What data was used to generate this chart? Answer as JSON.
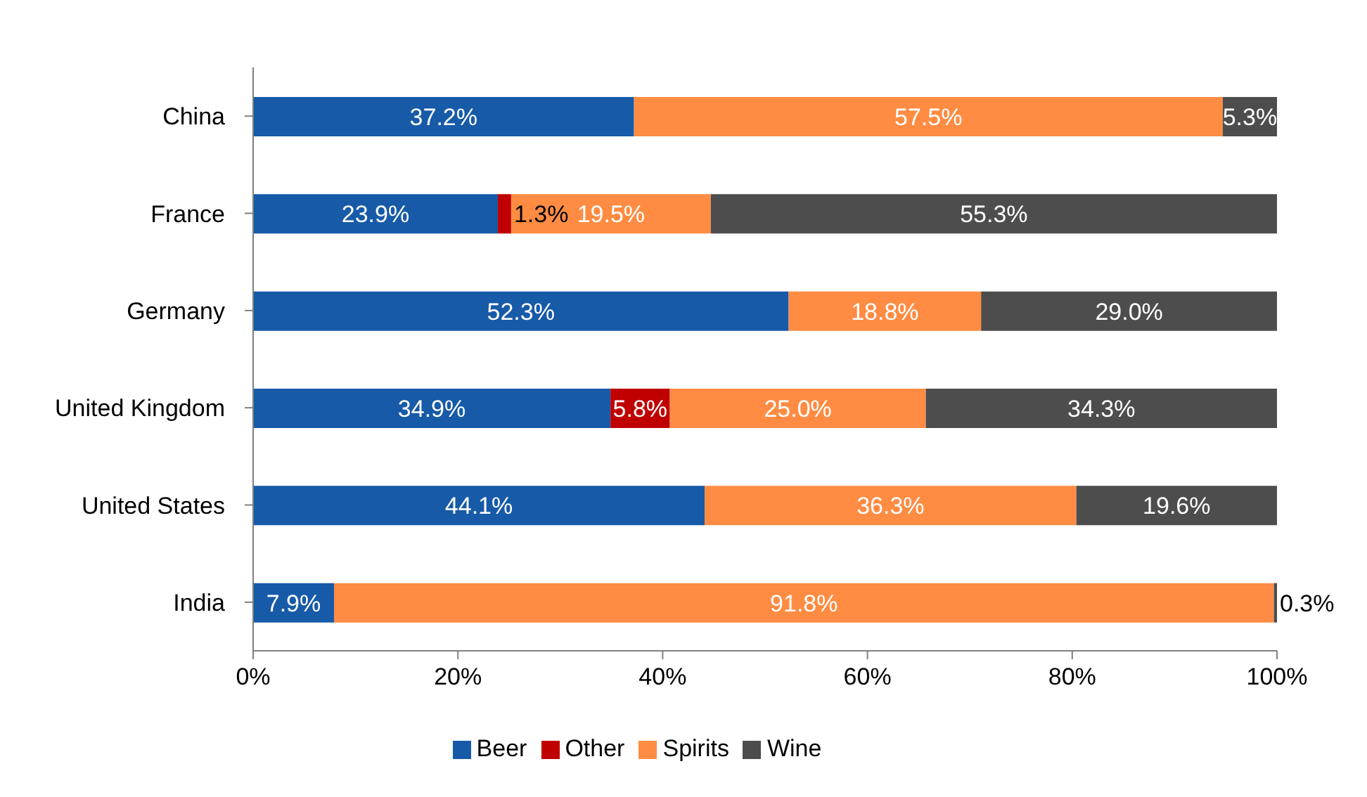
{
  "chart_data": {
    "type": "bar",
    "orientation": "horizontal",
    "stacked": true,
    "categories": [
      "China",
      "France",
      "Germany",
      "United Kingdom",
      "United States",
      "India"
    ],
    "series": [
      {
        "name": "Beer",
        "color": "#175aa8",
        "values": [
          37.2,
          23.9,
          52.3,
          34.9,
          44.1,
          7.9
        ],
        "value_labels": [
          "37.2%",
          "23.9%",
          "52.3%",
          "34.9%",
          "44.1%",
          "7.9%"
        ]
      },
      {
        "name": "Other",
        "color": "#c00000",
        "values": [
          null,
          1.3,
          null,
          5.8,
          null,
          null
        ],
        "value_labels": [
          null,
          "1.3%",
          null,
          "5.8%",
          null,
          null
        ]
      },
      {
        "name": "Spirits",
        "color": "#ff8c42",
        "values": [
          57.5,
          19.5,
          18.8,
          25.0,
          36.3,
          91.8
        ],
        "value_labels": [
          "57.5%",
          "19.5%",
          "18.8%",
          "25.0%",
          "36.3%",
          "91.8%"
        ]
      },
      {
        "name": "Wine",
        "color": "#4d4d4d",
        "values": [
          5.3,
          55.3,
          29.0,
          34.3,
          19.6,
          0.3
        ],
        "value_labels": [
          "5.3%",
          "55.3%",
          "29.0%",
          "34.3%",
          "19.6%",
          "0.3%"
        ]
      }
    ],
    "xlim": [
      0,
      100
    ],
    "xticks": [
      {
        "value": 0,
        "label": "0%"
      },
      {
        "value": 20,
        "label": "20%"
      },
      {
        "value": 40,
        "label": "40%"
      },
      {
        "value": 60,
        "label": "60%"
      },
      {
        "value": 80,
        "label": "80%"
      },
      {
        "value": 100,
        "label": "100%"
      }
    ],
    "grid": false,
    "legend": "bottom"
  }
}
